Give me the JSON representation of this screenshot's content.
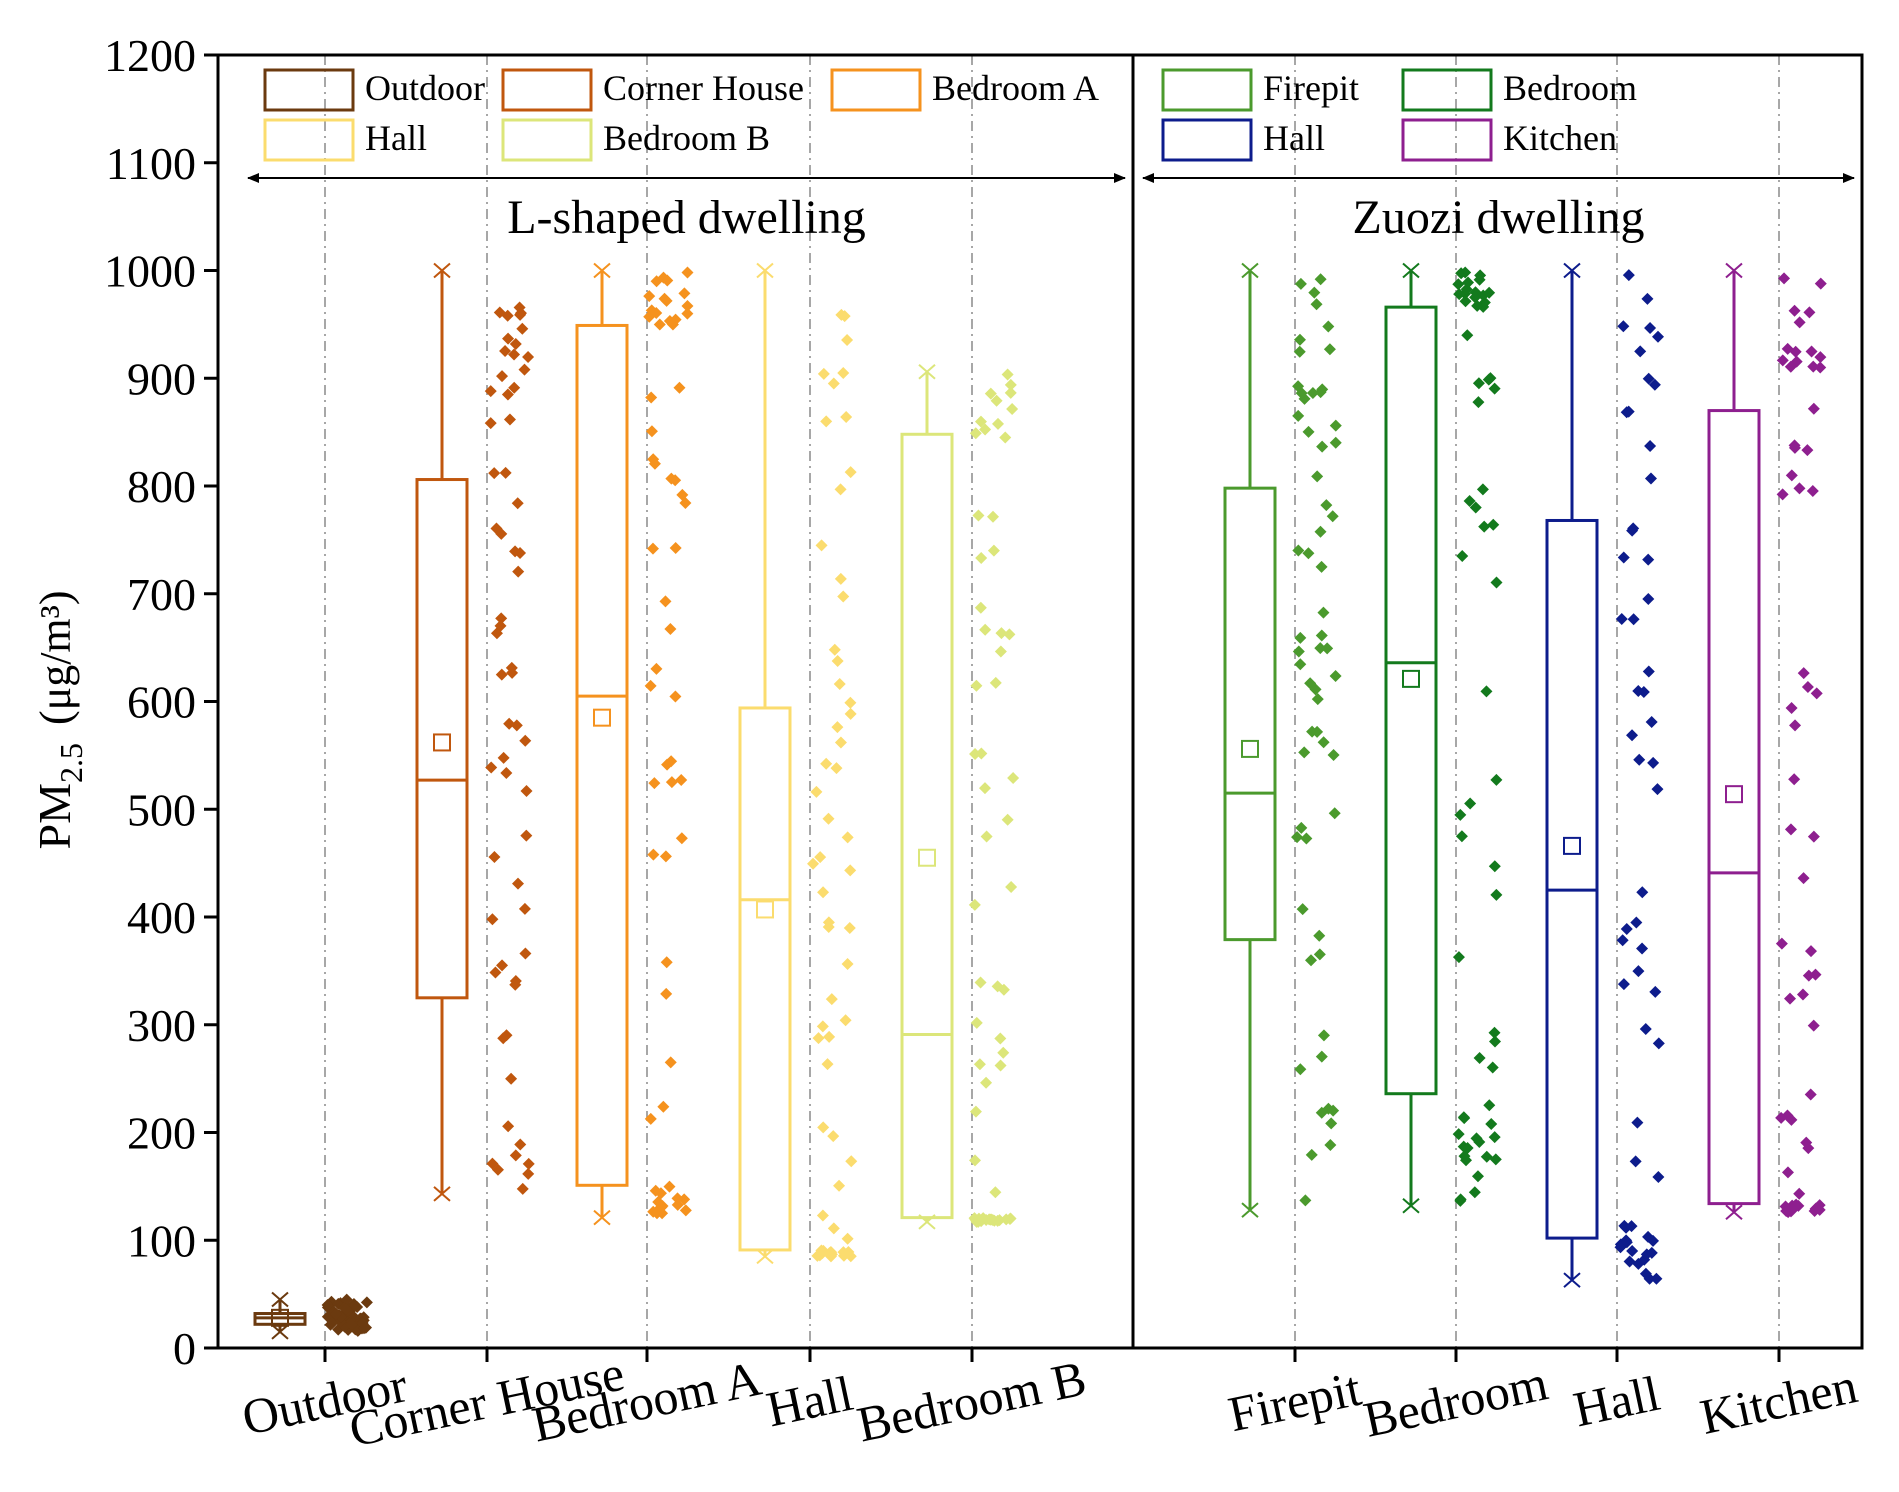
{
  "chart_data": {
    "type": "box",
    "ylabel": "PM2.5 (μg/m³)",
    "ylabel_main": "PM",
    "ylabel_sub": "2.5",
    "ylabel_unit": "(μg/m³)",
    "ylim": [
      0,
      1200
    ],
    "yticks": [
      0,
      100,
      200,
      300,
      400,
      500,
      600,
      700,
      800,
      900,
      1000,
      1100,
      1200
    ],
    "grid": "vertical dash-dot lines at category positions",
    "legend_placement": "top, inside each panel",
    "groups": [
      {
        "name": "L-shaped dwelling",
        "categories": [
          "Outdoor",
          "Corner House",
          "Bedroom A",
          "Hall",
          "Bedroom B"
        ]
      },
      {
        "name": "Zuozi dwelling",
        "categories": [
          "Firepit",
          "Bedroom",
          "Hall",
          "Kitchen"
        ]
      }
    ],
    "series": [
      {
        "name": "Outdoor",
        "group": 0,
        "color": "#6b3a0f",
        "min": 15,
        "q1": 22,
        "median": 28,
        "q3": 32,
        "max": 45,
        "mean": 28
      },
      {
        "name": "Corner House",
        "group": 0,
        "color": "#c0570e",
        "min": 143,
        "q1": 325,
        "median": 527,
        "q3": 806,
        "max": 1000,
        "mean": 562
      },
      {
        "name": "Bedroom A",
        "group": 0,
        "color": "#f5921e",
        "min": 121,
        "q1": 151,
        "median": 605,
        "q3": 949,
        "max": 1000,
        "mean": 585
      },
      {
        "name": "Hall",
        "group": 0,
        "color": "#fbdc6e",
        "min": 85,
        "q1": 91,
        "median": 416,
        "q3": 594,
        "max": 1000,
        "mean": 407
      },
      {
        "name": "Bedroom B",
        "group": 0,
        "color": "#dce67a",
        "min": 117,
        "q1": 121,
        "median": 291,
        "q3": 848,
        "max": 906,
        "mean": 455
      },
      {
        "name": "Firepit",
        "group": 1,
        "color": "#4b9a2d",
        "min": 128,
        "q1": 379,
        "median": 515,
        "q3": 798,
        "max": 1000,
        "mean": 556
      },
      {
        "name": "Bedroom",
        "group": 1,
        "color": "#137a1d",
        "min": 132,
        "q1": 236,
        "median": 636,
        "q3": 966,
        "max": 1000,
        "mean": 621
      },
      {
        "name": "Hall",
        "group": 1,
        "color": "#0d1c8c",
        "min": 63,
        "q1": 102,
        "median": 425,
        "q3": 768,
        "max": 1000,
        "mean": 466
      },
      {
        "name": "Kitchen",
        "group": 1,
        "color": "#8e1f8f",
        "min": 126,
        "q1": 134,
        "median": 441,
        "q3": 870,
        "max": 1000,
        "mean": 514
      }
    ]
  }
}
